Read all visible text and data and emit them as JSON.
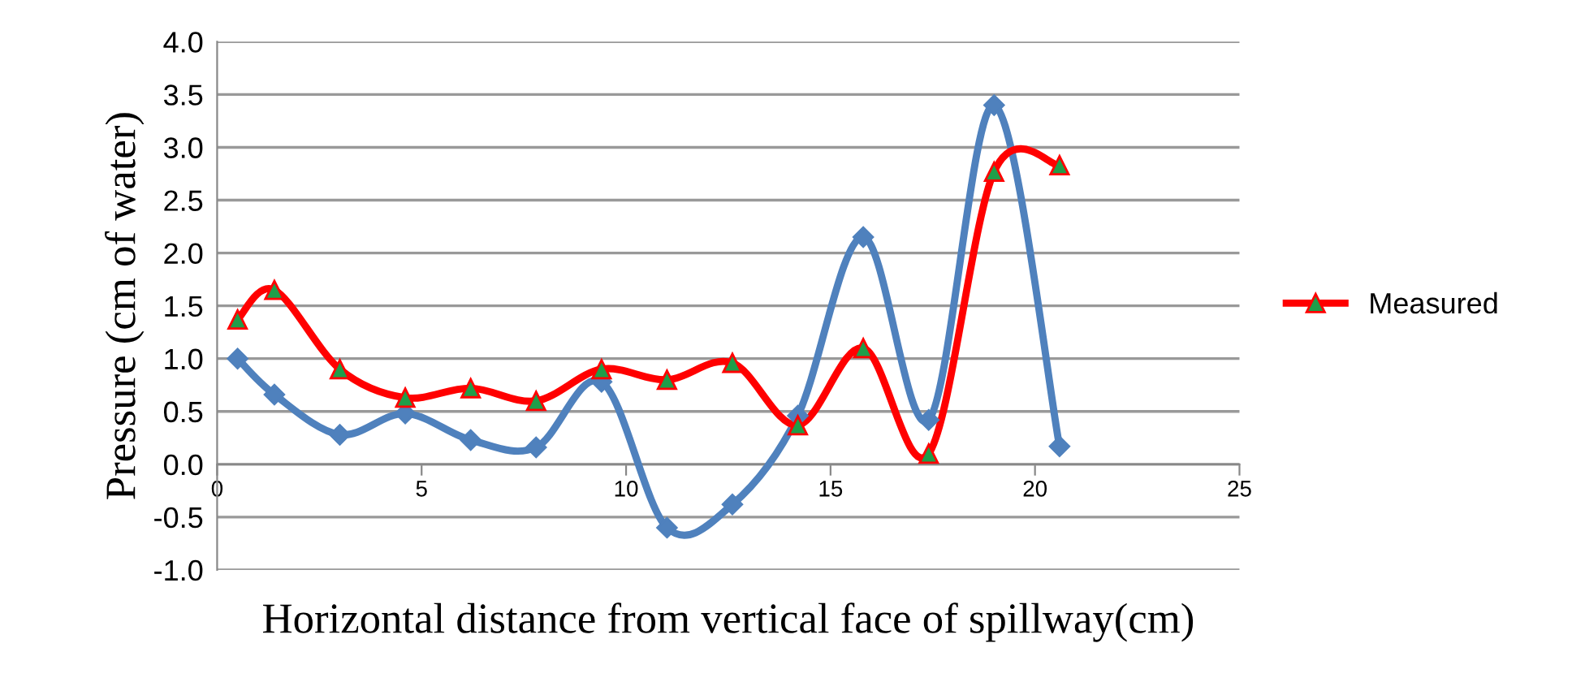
{
  "chart_data": {
    "type": "line",
    "xlabel": "Horizontal distance from vertical face of spillway(cm)",
    "ylabel": "Pressure (cm of water)",
    "xlim": [
      0,
      25
    ],
    "xticks": [
      0,
      5,
      10,
      15,
      20,
      25
    ],
    "ylim": [
      -1.0,
      4.0
    ],
    "yticks": [
      {
        "value": -1.0,
        "label": "-1.0"
      },
      {
        "value": -0.5,
        "label": "-0.5"
      },
      {
        "value": 0,
        "label": "0.0"
      },
      {
        "value": 0.5,
        "label": "0.5"
      },
      {
        "value": 1.0,
        "label": "1.0"
      },
      {
        "value": 1.5,
        "label": "1.5"
      },
      {
        "value": 2.0,
        "label": "2.0"
      },
      {
        "value": 2.5,
        "label": "2.5"
      },
      {
        "value": 3.0,
        "label": "3.0"
      },
      {
        "value": 3.5,
        "label": "3.5"
      },
      {
        "value": 4.0,
        "label": "4.0"
      }
    ],
    "grid": "y",
    "legend": "right",
    "x": [
      0.5,
      1.4,
      3.0,
      4.6,
      6.2,
      7.8,
      9.4,
      11.0,
      12.6,
      14.2,
      15.8,
      17.4,
      19.0,
      20.6
    ],
    "series": [
      {
        "color": "#4f81bd",
        "marker": "diamond",
        "values": [
          1.0,
          0.66,
          0.28,
          0.48,
          0.23,
          0.16,
          0.78,
          -0.6,
          -0.38,
          0.46,
          2.15,
          0.42,
          3.4,
          0.17
        ]
      },
      {
        "name": "Measured",
        "color": "#ff0000",
        "marker": "triangle",
        "values": [
          1.37,
          1.65,
          0.9,
          0.63,
          0.72,
          0.6,
          0.9,
          0.8,
          0.96,
          0.37,
          1.1,
          0.1,
          2.77,
          2.83
        ]
      }
    ]
  }
}
